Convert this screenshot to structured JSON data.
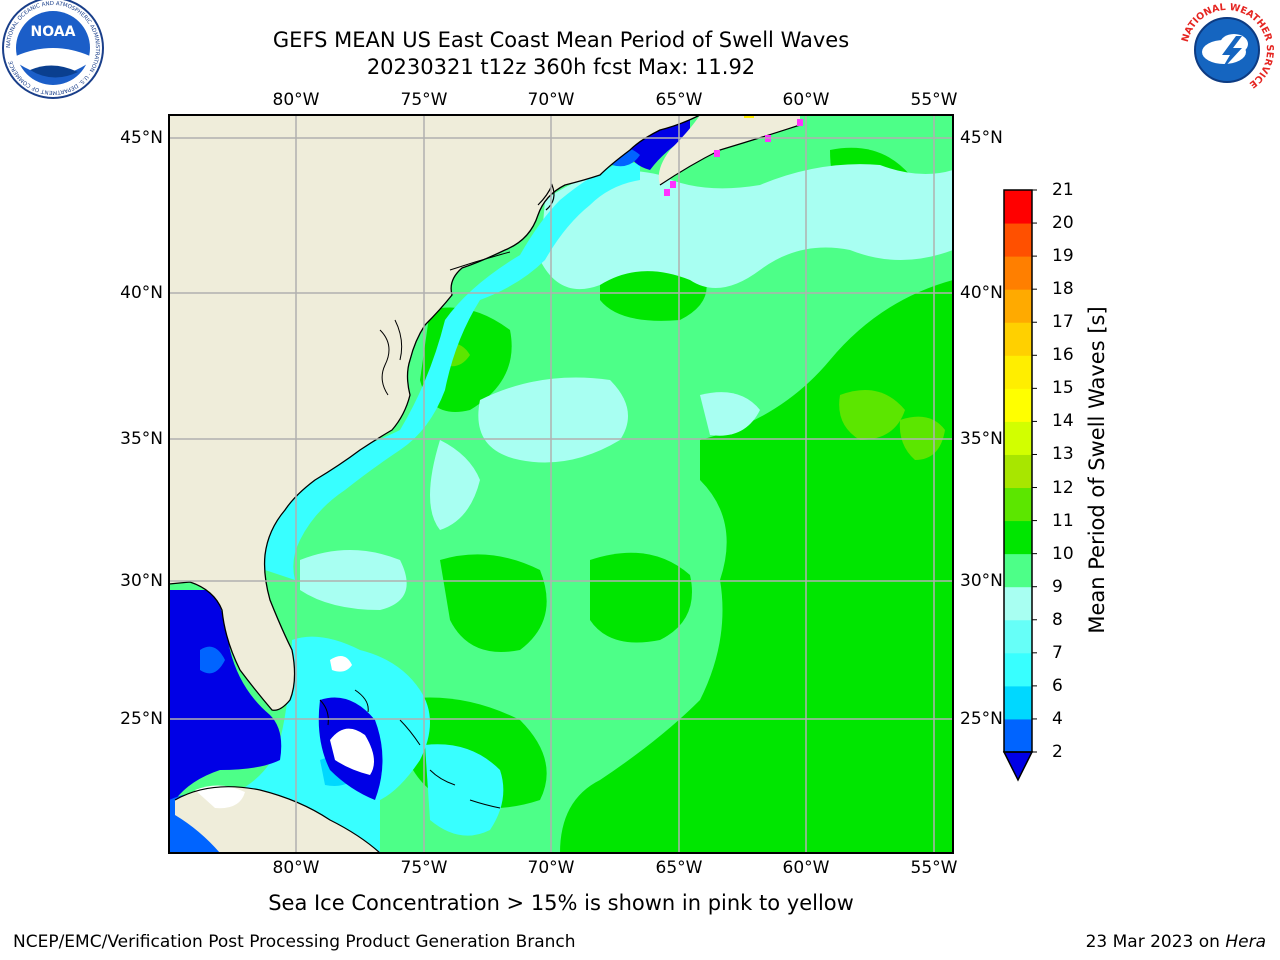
{
  "title": {
    "line1": "GEFS MEAN US East Coast Mean Period of Swell Waves",
    "line2": "20230321 t12z 360h fcst   Max: 11.92"
  },
  "map": {
    "lon_labels": [
      "80°W",
      "75°W",
      "70°W",
      "65°W",
      "60°W",
      "55°W"
    ],
    "lat_labels": [
      "45°N",
      "40°N",
      "35°N",
      "30°N",
      "25°N"
    ],
    "colors": {
      "land": "#efedda",
      "ice_marker": "#ff33ff",
      "grid": "#b0b0b0"
    }
  },
  "colorbar": {
    "title": "Mean Period of Swell Waves [s]",
    "ticks": [
      "2",
      "4",
      "6",
      "7",
      "8",
      "9",
      "10",
      "11",
      "12",
      "13",
      "14",
      "15",
      "16",
      "17",
      "18",
      "19",
      "20",
      "21"
    ],
    "colors": [
      "#0064ff",
      "#00d8ff",
      "#38ffff",
      "#66fff8",
      "#a8fff2",
      "#4dff88",
      "#00e600",
      "#5ce600",
      "#a8e600",
      "#d2ff00",
      "#ffff00",
      "#ffee00",
      "#ffd000",
      "#ffaa00",
      "#ff7f00",
      "#ff5000",
      "#ff0000"
    ],
    "under_color": "#0000e6"
  },
  "caption": "Sea Ice Concentration > 15% is shown in pink to yellow",
  "footer": {
    "left": "NCEP/EMC/Verification Post Processing Product Generation Branch",
    "date": "23 Mar 2023 on ",
    "machine": "Hera"
  },
  "logos": {
    "noaa": {
      "text": "NOAA",
      "ring_text": "NATIONAL OCEANIC AND ATMOSPHERIC ADMINISTRATION · U.S. DEPARTMENT OF COMMERCE"
    },
    "nws": {
      "ring_text": "NATIONAL WEATHER SERVICE"
    }
  }
}
